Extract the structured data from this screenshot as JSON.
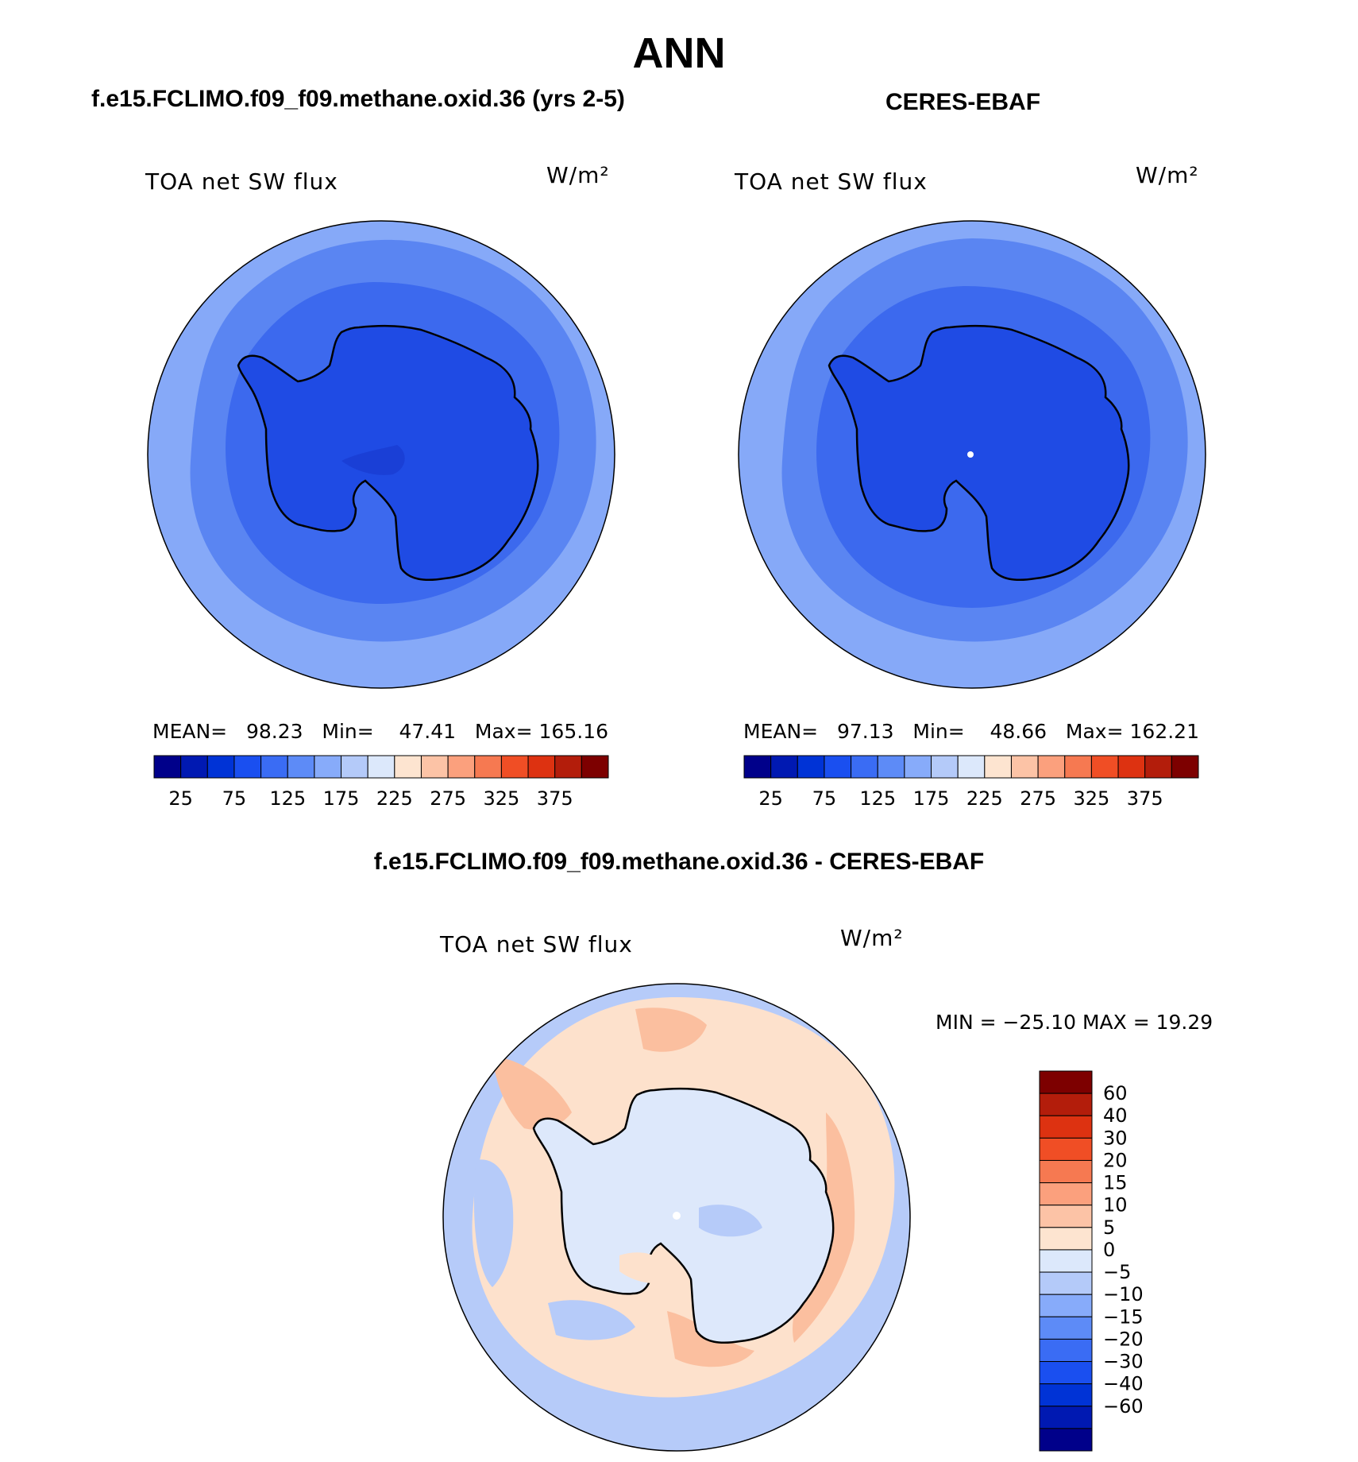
{
  "suptitle": "ANN",
  "panels": [
    {
      "title": "f.e15.FCLIMO.f09_f09.methane.oxid.36 (yrs 2-5)",
      "label_left": "TOA net SW flux",
      "units": "W/m²",
      "stats": {
        "mean_label": "MEAN=",
        "mean": "98.23",
        "min_label": "Min=",
        "min": "47.41",
        "max_label": "Max=",
        "max": "165.16"
      }
    },
    {
      "title": "CERES-EBAF",
      "label_left": "TOA net SW flux",
      "units": "W/m²",
      "stats": {
        "mean_label": "MEAN=",
        "mean": "97.13",
        "min_label": "Min=",
        "min": "48.66",
        "max_label": "Max=",
        "max": "162.21"
      }
    },
    {
      "title": "f.e15.FCLIMO.f09_f09.methane.oxid.36 - CERES-EBAF",
      "label_left": "TOA net SW flux",
      "units": "W/m²",
      "minmax": "MIN = −25.10 MAX =   19.29"
    }
  ],
  "colors": {
    "abs_scale": [
      "#00008a",
      "#0019b2",
      "#0033d6",
      "#1a4ff0",
      "#3a6cf4",
      "#5d8bf7",
      "#87abfa",
      "#b4caf9",
      "#dce8fb",
      "#fde4d0",
      "#fcc3a6",
      "#fba07d",
      "#f67951",
      "#f04e25",
      "#dd3211",
      "#b31d0b",
      "#7d0000"
    ],
    "diff_scale": [
      "#00008a",
      "#0019b2",
      "#0033d6",
      "#1a4ff0",
      "#3a6cf4",
      "#5d8bf7",
      "#87abfa",
      "#b4caf9",
      "#dce8fb",
      "#fde4d0",
      "#fcc3a6",
      "#fba07d",
      "#f67951",
      "#f04e25",
      "#dd3211",
      "#b31d0b",
      "#7d0000"
    ],
    "outer": "#86a9f8",
    "mid": "#5a85f2",
    "inner": "#3c69ee",
    "land": "#1f4be4",
    "core": "#1a3fd6",
    "diff_base": "#dde8fb",
    "diff_pos": "#fde1cc",
    "diff_pos2": "#fbbf9f",
    "diff_neg": "#b6cbf9",
    "diff_neg2": "#88abf6"
  },
  "chart_data": [
    {
      "type": "heatmap",
      "title": "f.e15.FCLIMO.f09_f09.methane.oxid.36 (yrs 2-5)",
      "variable": "TOA net SW flux",
      "units": "W/m2",
      "projection": "south polar stereographic",
      "mean": 98.23,
      "min": 47.41,
      "max": 165.16,
      "colorbar_levels": [
        25,
        50,
        75,
        100,
        125,
        150,
        175,
        200,
        225,
        250,
        275,
        300,
        325,
        350,
        375
      ],
      "colorbar_ticks": [
        "25",
        "75",
        "125",
        "175",
        "225",
        "275",
        "325",
        "375"
      ]
    },
    {
      "type": "heatmap",
      "title": "CERES-EBAF",
      "variable": "TOA net SW flux",
      "units": "W/m2",
      "projection": "south polar stereographic",
      "mean": 97.13,
      "min": 48.66,
      "max": 162.21,
      "colorbar_levels": [
        25,
        50,
        75,
        100,
        125,
        150,
        175,
        200,
        225,
        250,
        275,
        300,
        325,
        350,
        375
      ],
      "colorbar_ticks": [
        "25",
        "75",
        "125",
        "175",
        "225",
        "275",
        "325",
        "375"
      ]
    },
    {
      "type": "heatmap",
      "title": "f.e15.FCLIMO.f09_f09.methane.oxid.36 - CERES-EBAF",
      "variable": "TOA net SW flux",
      "units": "W/m2",
      "projection": "south polar stereographic",
      "min": -25.1,
      "max": 19.29,
      "colorbar_levels": [
        -60,
        -40,
        -30,
        -20,
        -15,
        -10,
        -5,
        0,
        5,
        10,
        15,
        20,
        30,
        40,
        60
      ],
      "colorbar_ticks": [
        "60",
        "40",
        "30",
        "20",
        "15",
        "10",
        "5",
        "0",
        "−5",
        "−10",
        "−15",
        "−20",
        "−30",
        "−40",
        "−60"
      ]
    }
  ]
}
